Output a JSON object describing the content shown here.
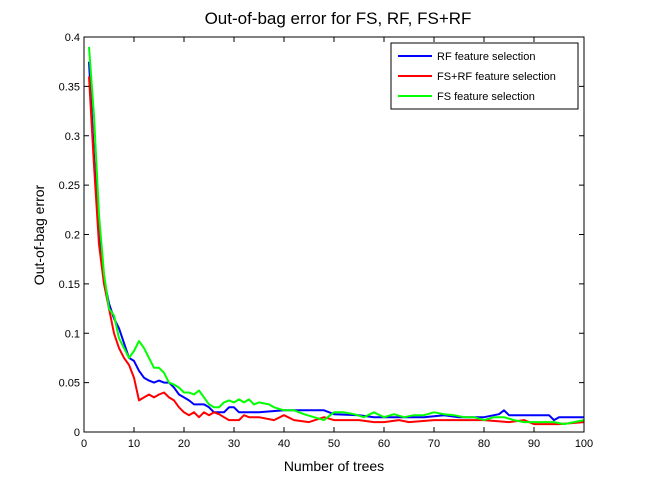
{
  "chart_data": {
    "type": "line",
    "title": "Out-of-bag error for FS, RF, FS+RF",
    "xlabel": "Number of trees",
    "ylabel": "Out-of-bag error",
    "xlim": [
      0,
      100
    ],
    "ylim": [
      0,
      0.4
    ],
    "xticks": [
      "0",
      "10",
      "20",
      "30",
      "40",
      "50",
      "60",
      "70",
      "80",
      "90",
      "100"
    ],
    "yticks": [
      "0",
      "0.05",
      "0.1",
      "0.15",
      "0.2",
      "0.25",
      "0.3",
      "0.35",
      "0.4"
    ],
    "grid": false,
    "legend_position": "top-right",
    "series": [
      {
        "name": "RF feature selection",
        "color": "#0000ff",
        "points": [
          [
            1,
            0.375
          ],
          [
            2,
            0.28
          ],
          [
            3,
            0.2
          ],
          [
            4,
            0.155
          ],
          [
            5,
            0.13
          ],
          [
            6,
            0.115
          ],
          [
            7,
            0.105
          ],
          [
            8,
            0.09
          ],
          [
            9,
            0.075
          ],
          [
            10,
            0.072
          ],
          [
            11,
            0.062
          ],
          [
            12,
            0.055
          ],
          [
            13,
            0.052
          ],
          [
            14,
            0.05
          ],
          [
            15,
            0.052
          ],
          [
            16,
            0.05
          ],
          [
            17,
            0.05
          ],
          [
            18,
            0.045
          ],
          [
            19,
            0.038
          ],
          [
            20,
            0.035
          ],
          [
            21,
            0.032
          ],
          [
            22,
            0.028
          ],
          [
            23,
            0.028
          ],
          [
            24,
            0.028
          ],
          [
            25,
            0.025
          ],
          [
            26,
            0.02
          ],
          [
            27,
            0.02
          ],
          [
            28,
            0.02
          ],
          [
            29,
            0.025
          ],
          [
            30,
            0.025
          ],
          [
            31,
            0.02
          ],
          [
            35,
            0.02
          ],
          [
            40,
            0.022
          ],
          [
            48,
            0.022
          ],
          [
            50,
            0.018
          ],
          [
            55,
            0.017
          ],
          [
            58,
            0.015
          ],
          [
            62,
            0.015
          ],
          [
            65,
            0.015
          ],
          [
            68,
            0.015
          ],
          [
            72,
            0.017
          ],
          [
            75,
            0.015
          ],
          [
            80,
            0.015
          ],
          [
            83,
            0.018
          ],
          [
            84,
            0.022
          ],
          [
            85,
            0.017
          ],
          [
            88,
            0.017
          ],
          [
            93,
            0.017
          ],
          [
            94,
            0.012
          ],
          [
            95,
            0.015
          ],
          [
            100,
            0.015
          ]
        ]
      },
      {
        "name": "FS+RF feature selection",
        "color": "#ff0000",
        "points": [
          [
            1,
            0.36
          ],
          [
            2,
            0.27
          ],
          [
            3,
            0.19
          ],
          [
            4,
            0.15
          ],
          [
            5,
            0.125
          ],
          [
            6,
            0.1
          ],
          [
            7,
            0.085
          ],
          [
            8,
            0.075
          ],
          [
            9,
            0.068
          ],
          [
            10,
            0.055
          ],
          [
            11,
            0.032
          ],
          [
            12,
            0.035
          ],
          [
            13,
            0.038
          ],
          [
            14,
            0.035
          ],
          [
            15,
            0.038
          ],
          [
            16,
            0.04
          ],
          [
            17,
            0.035
          ],
          [
            18,
            0.032
          ],
          [
            19,
            0.025
          ],
          [
            20,
            0.02
          ],
          [
            21,
            0.017
          ],
          [
            22,
            0.02
          ],
          [
            23,
            0.015
          ],
          [
            24,
            0.02
          ],
          [
            25,
            0.017
          ],
          [
            26,
            0.02
          ],
          [
            27,
            0.018
          ],
          [
            28,
            0.015
          ],
          [
            29,
            0.012
          ],
          [
            30,
            0.012
          ],
          [
            31,
            0.012
          ],
          [
            32,
            0.017
          ],
          [
            33,
            0.015
          ],
          [
            35,
            0.015
          ],
          [
            38,
            0.012
          ],
          [
            40,
            0.017
          ],
          [
            42,
            0.012
          ],
          [
            45,
            0.01
          ],
          [
            48,
            0.015
          ],
          [
            50,
            0.012
          ],
          [
            55,
            0.012
          ],
          [
            58,
            0.01
          ],
          [
            60,
            0.01
          ],
          [
            63,
            0.012
          ],
          [
            65,
            0.01
          ],
          [
            70,
            0.012
          ],
          [
            75,
            0.012
          ],
          [
            80,
            0.012
          ],
          [
            85,
            0.01
          ],
          [
            88,
            0.012
          ],
          [
            90,
            0.008
          ],
          [
            95,
            0.008
          ],
          [
            100,
            0.01
          ]
        ]
      },
      {
        "name": "FS feature selection",
        "color": "#00ff00",
        "points": [
          [
            1,
            0.39
          ],
          [
            2,
            0.32
          ],
          [
            3,
            0.22
          ],
          [
            4,
            0.16
          ],
          [
            5,
            0.125
          ],
          [
            6,
            0.118
          ],
          [
            7,
            0.095
          ],
          [
            8,
            0.085
          ],
          [
            9,
            0.075
          ],
          [
            10,
            0.082
          ],
          [
            11,
            0.092
          ],
          [
            12,
            0.085
          ],
          [
            13,
            0.075
          ],
          [
            14,
            0.065
          ],
          [
            15,
            0.065
          ],
          [
            16,
            0.06
          ],
          [
            17,
            0.05
          ],
          [
            18,
            0.048
          ],
          [
            19,
            0.045
          ],
          [
            20,
            0.04
          ],
          [
            21,
            0.04
          ],
          [
            22,
            0.038
          ],
          [
            23,
            0.042
          ],
          [
            24,
            0.035
          ],
          [
            25,
            0.028
          ],
          [
            26,
            0.025
          ],
          [
            27,
            0.025
          ],
          [
            28,
            0.03
          ],
          [
            29,
            0.032
          ],
          [
            30,
            0.03
          ],
          [
            31,
            0.033
          ],
          [
            32,
            0.03
          ],
          [
            33,
            0.033
          ],
          [
            34,
            0.028
          ],
          [
            35,
            0.03
          ],
          [
            37,
            0.028
          ],
          [
            38,
            0.025
          ],
          [
            40,
            0.022
          ],
          [
            42,
            0.022
          ],
          [
            44,
            0.018
          ],
          [
            46,
            0.015
          ],
          [
            48,
            0.012
          ],
          [
            50,
            0.02
          ],
          [
            52,
            0.02
          ],
          [
            54,
            0.018
          ],
          [
            56,
            0.015
          ],
          [
            58,
            0.02
          ],
          [
            60,
            0.015
          ],
          [
            62,
            0.018
          ],
          [
            64,
            0.015
          ],
          [
            66,
            0.017
          ],
          [
            68,
            0.017
          ],
          [
            70,
            0.02
          ],
          [
            72,
            0.018
          ],
          [
            74,
            0.017
          ],
          [
            76,
            0.015
          ],
          [
            78,
            0.015
          ],
          [
            80,
            0.012
          ],
          [
            82,
            0.015
          ],
          [
            84,
            0.015
          ],
          [
            86,
            0.012
          ],
          [
            88,
            0.01
          ],
          [
            90,
            0.01
          ],
          [
            92,
            0.01
          ],
          [
            94,
            0.01
          ],
          [
            96,
            0.008
          ],
          [
            98,
            0.01
          ],
          [
            100,
            0.012
          ]
        ]
      }
    ]
  }
}
